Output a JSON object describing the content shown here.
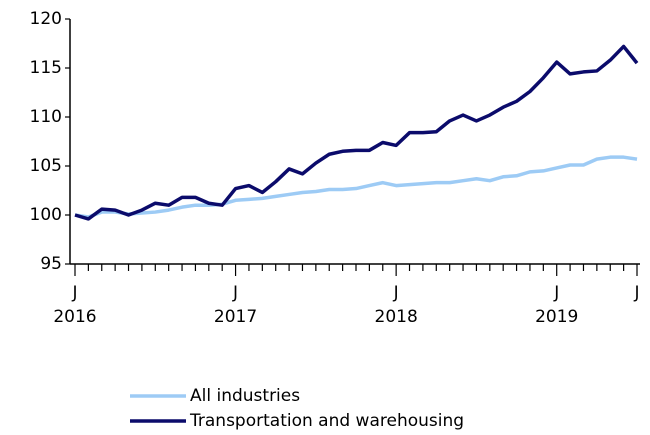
{
  "chart_data": {
    "type": "line",
    "categories": [
      "J\n2016",
      null,
      null,
      null,
      null,
      null,
      null,
      null,
      null,
      null,
      null,
      null,
      "J\n2017",
      null,
      null,
      null,
      null,
      null,
      null,
      null,
      null,
      null,
      null,
      null,
      "J\n2018",
      null,
      null,
      null,
      null,
      null,
      null,
      null,
      null,
      null,
      null,
      null,
      "J\n2019",
      null,
      null,
      null,
      null,
      null,
      "J"
    ],
    "series": [
      {
        "name": "All industries",
        "color": "#9dcbf5",
        "values": [
          100,
          99.8,
          100.3,
          100.3,
          100.1,
          100.2,
          100.3,
          100.5,
          100.8,
          101,
          101,
          101.1,
          101.5,
          101.6,
          101.7,
          101.9,
          102.1,
          102.3,
          102.4,
          102.6,
          102.6,
          102.7,
          103,
          103.3,
          103,
          103.1,
          103.2,
          103.3,
          103.3,
          103.5,
          103.7,
          103.5,
          103.9,
          104,
          104.4,
          104.5,
          104.8,
          105.1,
          105.1,
          105.7,
          105.9,
          105.9,
          105.7
        ]
      },
      {
        "name": "Transportation and warehousing",
        "color": "#0b0b6b",
        "values": [
          100,
          99.6,
          100.6,
          100.5,
          100,
          100.5,
          101.2,
          101,
          101.8,
          101.8,
          101.2,
          101,
          102.7,
          103,
          102.3,
          103.4,
          104.7,
          104.2,
          105.3,
          106.2,
          106.5,
          106.6,
          106.6,
          107.4,
          107.1,
          108.4,
          108.4,
          108.5,
          109.6,
          110.2,
          109.6,
          110.2,
          111,
          111.6,
          112.6,
          114,
          115.6,
          114.4,
          114.6,
          114.7,
          115.8,
          117.2,
          115.5
        ]
      }
    ],
    "ylim": [
      95,
      120
    ],
    "yticks": [
      95,
      100,
      105,
      110,
      115,
      120
    ],
    "grid": false
  }
}
